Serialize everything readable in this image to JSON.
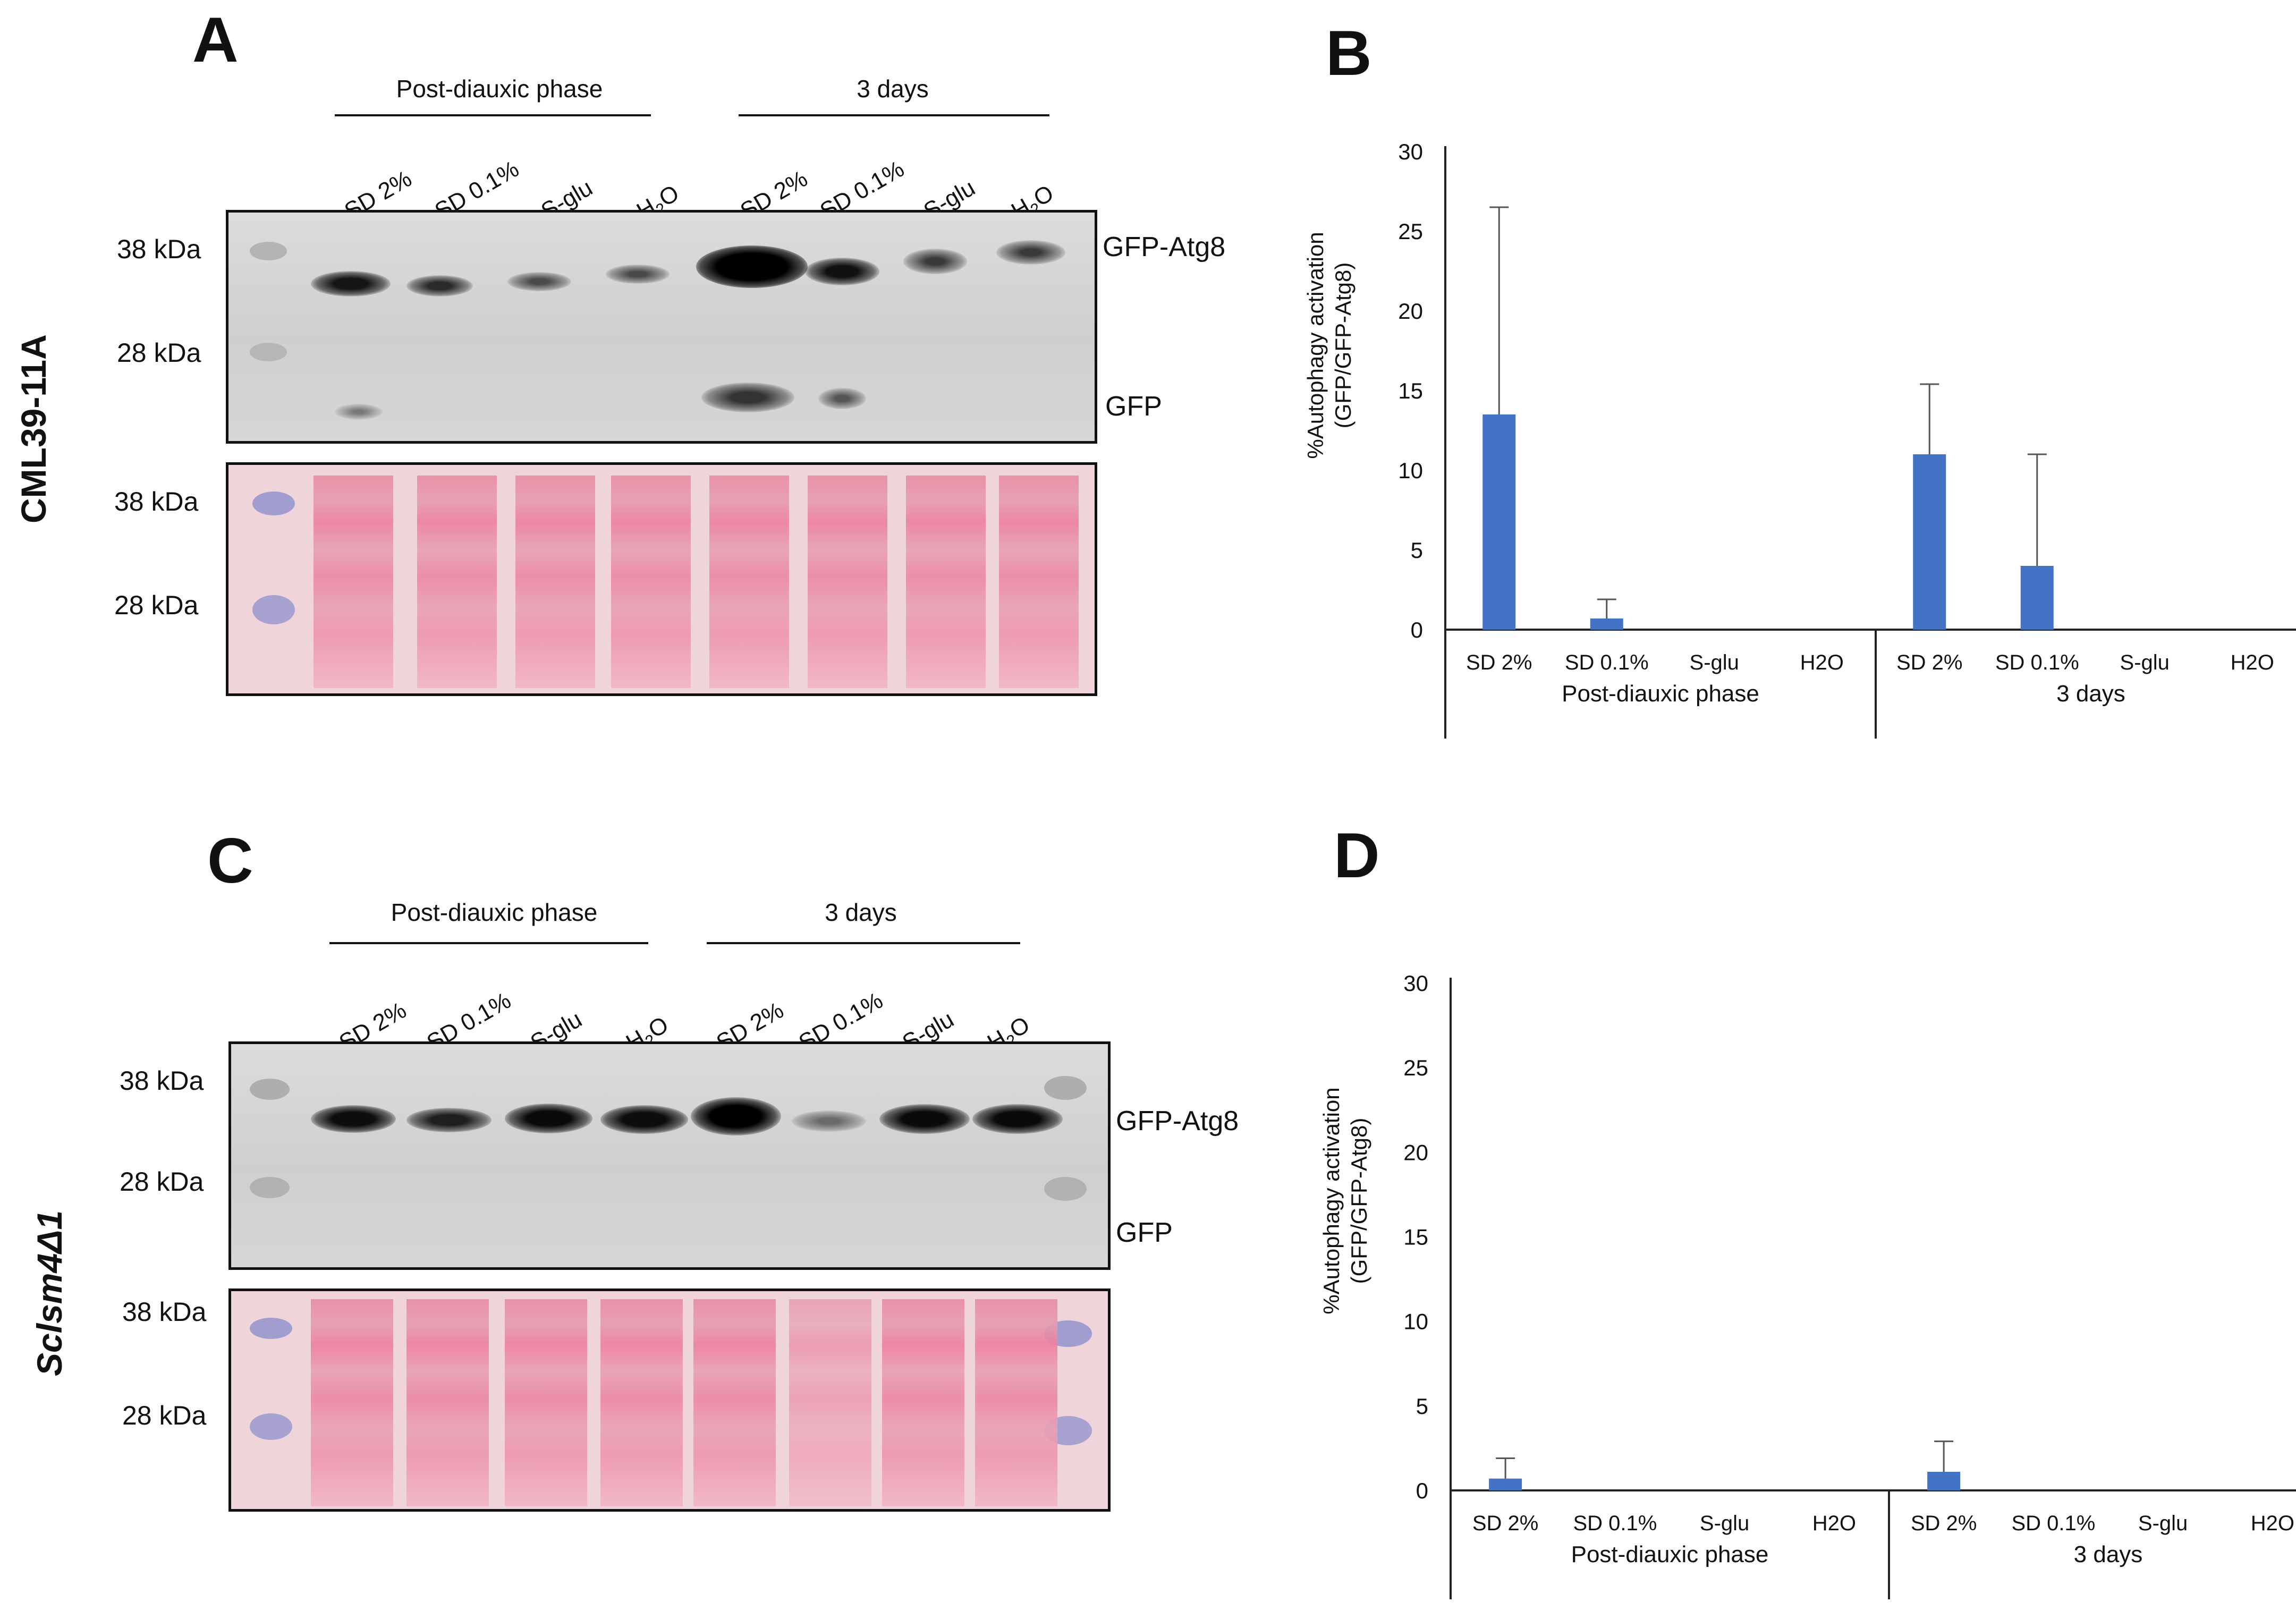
{
  "figure": {
    "panels": [
      {
        "letter": "A",
        "strain": "CML39-11A",
        "groups": [
          "Post-diauxic phase",
          "3 days"
        ],
        "lanes": [
          "SD 2%",
          "SD 0.1%",
          "S-glu",
          "H2O",
          "SD 2%",
          "SD 0.1%",
          "S-glu",
          "H2O"
        ],
        "blot_markers": [
          "38 kDa",
          "28 kDa"
        ],
        "stain_markers": [
          "38 kDa",
          "28 kDa"
        ],
        "band_labels": [
          "GFP-Atg8",
          "GFP"
        ]
      },
      {
        "letter": "C",
        "strain": "Sclsm4Δ1",
        "groups": [
          "Post-diauxic phase",
          "3 days"
        ],
        "lanes": [
          "SD 2%",
          "SD 0.1%",
          "S-glu",
          "H2O",
          "SD 2%",
          "SD 0.1%",
          "S-glu",
          "H2O"
        ],
        "blot_markers": [
          "38 kDa",
          "28 kDa"
        ],
        "stain_markers": [
          "38 kDa",
          "28 kDa"
        ],
        "band_labels": [
          "GFP-Atg8",
          "GFP"
        ]
      }
    ],
    "chart_panels": [
      {
        "letter": "B"
      },
      {
        "letter": "D"
      }
    ]
  },
  "chart_data": [
    {
      "type": "bar",
      "ylabel_line1": "%Autophagy activation",
      "ylabel_line2": "(GFP/GFP-Atg8)",
      "ylim": [
        0,
        30
      ],
      "yticks": [
        0,
        5,
        10,
        15,
        20,
        25,
        30
      ],
      "categories": [
        "SD 2%",
        "SD 0.1%",
        "S-glu",
        "H2O",
        "SD 2%",
        "SD 0.1%",
        "S-glu",
        "H2O"
      ],
      "groups": [
        "Post-diauxic phase",
        "3 days"
      ],
      "values": [
        13.5,
        0.7,
        0,
        0,
        11.0,
        4.0,
        0,
        0
      ],
      "errors": [
        13.0,
        1.2,
        0,
        0,
        4.4,
        7.0,
        0,
        0
      ],
      "bar_color": "#4472c4"
    },
    {
      "type": "bar",
      "ylabel_line1": "%Autophagy activation",
      "ylabel_line2": "(GFP/GFP-Atg8)",
      "ylim": [
        0,
        30
      ],
      "yticks": [
        0,
        5,
        10,
        15,
        20,
        25,
        30
      ],
      "categories": [
        "SD 2%",
        "SD 0.1%",
        "S-glu",
        "H2O",
        "SD 2%",
        "SD 0.1%",
        "S-glu",
        "H2O"
      ],
      "groups": [
        "Post-diauxic phase",
        "3 days"
      ],
      "values": [
        0.7,
        0,
        0,
        0,
        1.1,
        0,
        0,
        0
      ],
      "errors": [
        1.2,
        0,
        0,
        0,
        1.8,
        0,
        0,
        0
      ],
      "bar_color": "#4472c4"
    }
  ]
}
